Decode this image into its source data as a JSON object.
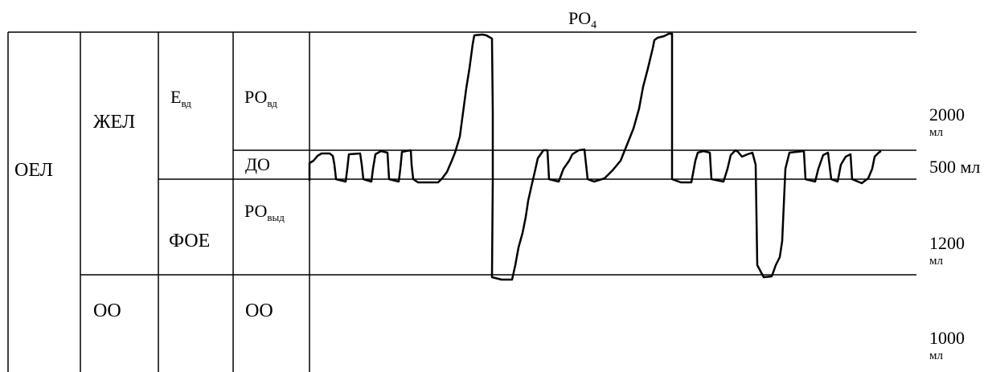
{
  "top_label": {
    "main": "PO",
    "sub": "4"
  },
  "table": {
    "oel": "ОЕЛ",
    "zhel": "ЖЕЛ",
    "oo_left": "ОО",
    "e_vd": {
      "main": "Е",
      "sub": "вд"
    },
    "foe": "ФОЕ",
    "ro_vd": {
      "main": "РО",
      "sub": "вд"
    },
    "do": "ДО",
    "ro_vyd": {
      "main": "РО",
      "sub": "выд"
    },
    "oo_right": "ОО"
  },
  "volumes": {
    "v2000": {
      "value": "2000",
      "unit": "мл"
    },
    "v500": "500 мл",
    "v1200": {
      "value": "1200",
      "unit": "мл"
    },
    "v1000": {
      "value": "1000",
      "unit": "мл"
    }
  }
}
